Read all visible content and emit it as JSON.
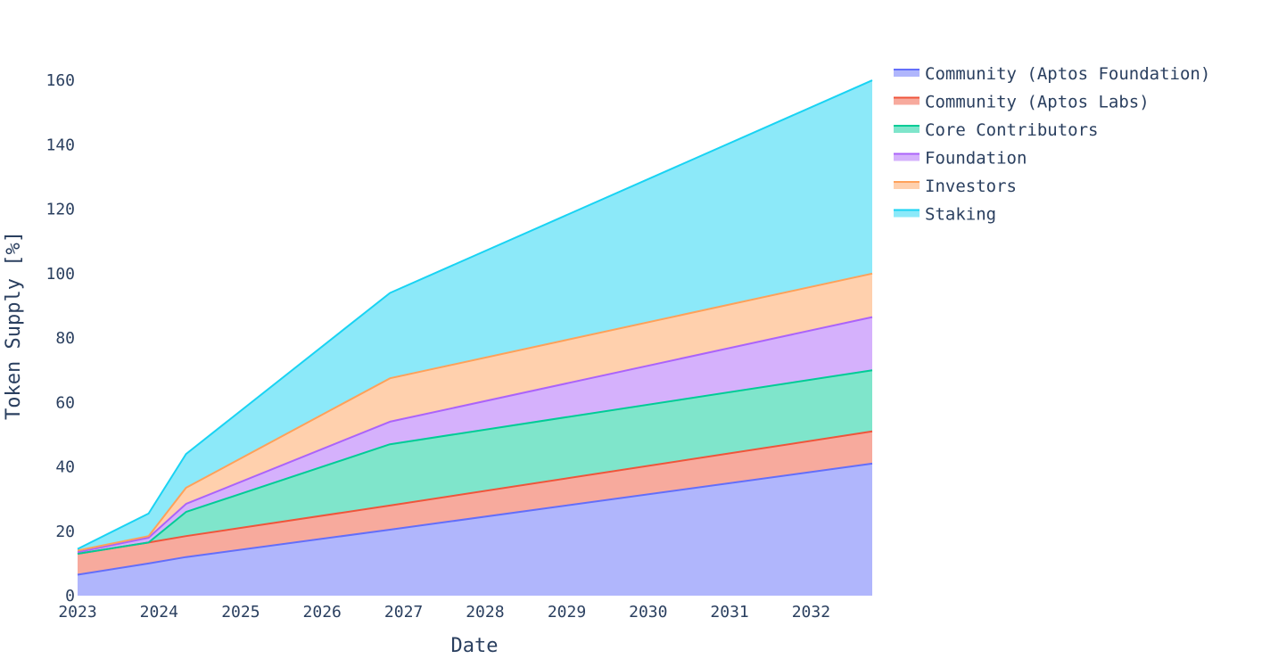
{
  "chart_data": {
    "type": "area",
    "stacked": true,
    "title": "",
    "xlabel": "Date",
    "ylabel": "Token Supply [%]",
    "xlim": [
      "2023-01-01",
      "2032-10-01"
    ],
    "ylim": [
      0,
      165
    ],
    "grid": false,
    "legend_position": "top-right",
    "x_ticks": [
      "2023",
      "2024",
      "2025",
      "2026",
      "2027",
      "2028",
      "2029",
      "2030",
      "2031",
      "2032"
    ],
    "y_ticks": [
      0,
      20,
      40,
      60,
      80,
      100,
      120,
      140,
      160
    ],
    "x": [
      "2022-12-20",
      "2023-11-15",
      "2024-05-01",
      "2026-11-01",
      "2032-10-01"
    ],
    "series": [
      {
        "name": "Community (Aptos Foundation)",
        "line_color": "#636efa",
        "fill_color": "#b0b6fc",
        "values": [
          6.5,
          10.0,
          12.0,
          20.5,
          41.0
        ]
      },
      {
        "name": "Community (Aptos Labs)",
        "line_color": "#ef553b",
        "fill_color": "#f7aa9d",
        "values": [
          6.5,
          6.5,
          6.5,
          7.5,
          10.0
        ]
      },
      {
        "name": "Core Contributors",
        "line_color": "#00cc96",
        "fill_color": "#7fe5cb",
        "values": [
          0.0,
          0.0,
          7.5,
          19.0,
          19.0
        ]
      },
      {
        "name": "Foundation",
        "line_color": "#ab63fa",
        "fill_color": "#d5b1fc",
        "values": [
          0.5,
          1.5,
          2.5,
          7.0,
          16.5
        ]
      },
      {
        "name": "Investors",
        "line_color": "#ffa15a",
        "fill_color": "#ffd0ad",
        "values": [
          0.5,
          0.5,
          5.0,
          13.5,
          13.5
        ]
      },
      {
        "name": "Staking",
        "line_color": "#19d3f3",
        "fill_color": "#8ce9f9",
        "values": [
          0.5,
          7.0,
          10.5,
          26.5,
          60.0
        ]
      }
    ]
  }
}
